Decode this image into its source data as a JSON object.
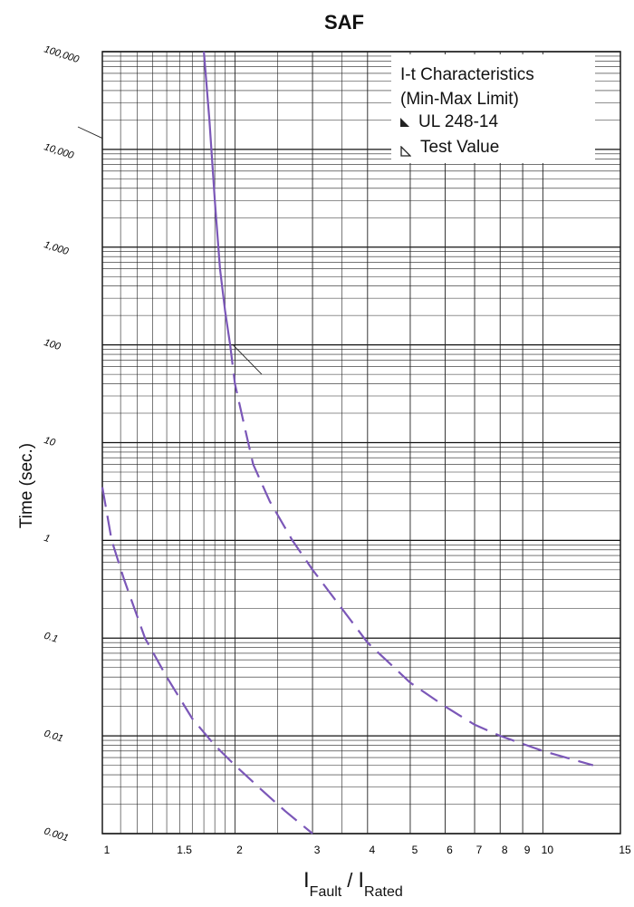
{
  "chart_data": {
    "type": "line",
    "title": "SAF",
    "xlabel": {
      "main1": "I",
      "sub1": "Fault",
      "sep": "/",
      "main2": "I",
      "sub2": "Rated"
    },
    "ylabel": "Time (sec.)",
    "xscale": "log",
    "yscale": "log",
    "xlim": [
      1,
      15
    ],
    "ylim": [
      0.001,
      100000
    ],
    "x_ticks": [
      "1",
      "1.5",
      "2",
      "3",
      "4",
      "5",
      "6",
      "7",
      "8",
      "9",
      "10",
      "15"
    ],
    "y_ticks": [
      "0.001",
      "0.01",
      "0.1",
      "1",
      "10",
      "100",
      "1,000",
      "10,000",
      "100,000"
    ],
    "grid": true,
    "legend": {
      "placement": "top-right",
      "title_line1": "I-t Characteristics",
      "title_line2": "(Min-Max Limit)",
      "entries": [
        {
          "label": "UL 248-14",
          "marker": "filled-triangle"
        },
        {
          "label": "Test Value",
          "marker": "open-triangle"
        }
      ]
    },
    "curve_color": "#7b57b8",
    "series": [
      {
        "name": "UL 248-14",
        "style": "solid-then-dashed",
        "solid_until_x": 1.98,
        "points": [
          [
            1.7,
            100000
          ],
          [
            1.75,
            20000
          ],
          [
            1.8,
            3000
          ],
          [
            1.85,
            600
          ],
          [
            1.9,
            220
          ],
          [
            1.95,
            100
          ],
          [
            2.0,
            40
          ],
          [
            2.1,
            15
          ],
          [
            2.2,
            6
          ],
          [
            2.4,
            2.5
          ],
          [
            2.7,
            1.0
          ],
          [
            3.0,
            0.5
          ],
          [
            3.5,
            0.2
          ],
          [
            4.0,
            0.09
          ],
          [
            5.0,
            0.035
          ],
          [
            6.0,
            0.02
          ],
          [
            7.0,
            0.013
          ],
          [
            8.0,
            0.01
          ],
          [
            10.0,
            0.007
          ],
          [
            13.0,
            0.005
          ]
        ]
      },
      {
        "name": "Test Value",
        "style": "dashed",
        "points": [
          [
            1.0,
            3.5
          ],
          [
            1.05,
            1.0
          ],
          [
            1.12,
            0.4
          ],
          [
            1.25,
            0.1
          ],
          [
            1.4,
            0.04
          ],
          [
            1.6,
            0.015
          ],
          [
            1.8,
            0.008
          ],
          [
            2.0,
            0.005
          ],
          [
            2.3,
            0.0028
          ],
          [
            2.6,
            0.0017
          ],
          [
            3.0,
            0.001
          ]
        ]
      }
    ]
  },
  "annotations": [
    {
      "from": [
        1.0,
        13000
      ],
      "to": [
        0.88,
        17000
      ]
    },
    {
      "from": [
        1.98,
        100
      ],
      "to": [
        2.3,
        50
      ]
    }
  ]
}
